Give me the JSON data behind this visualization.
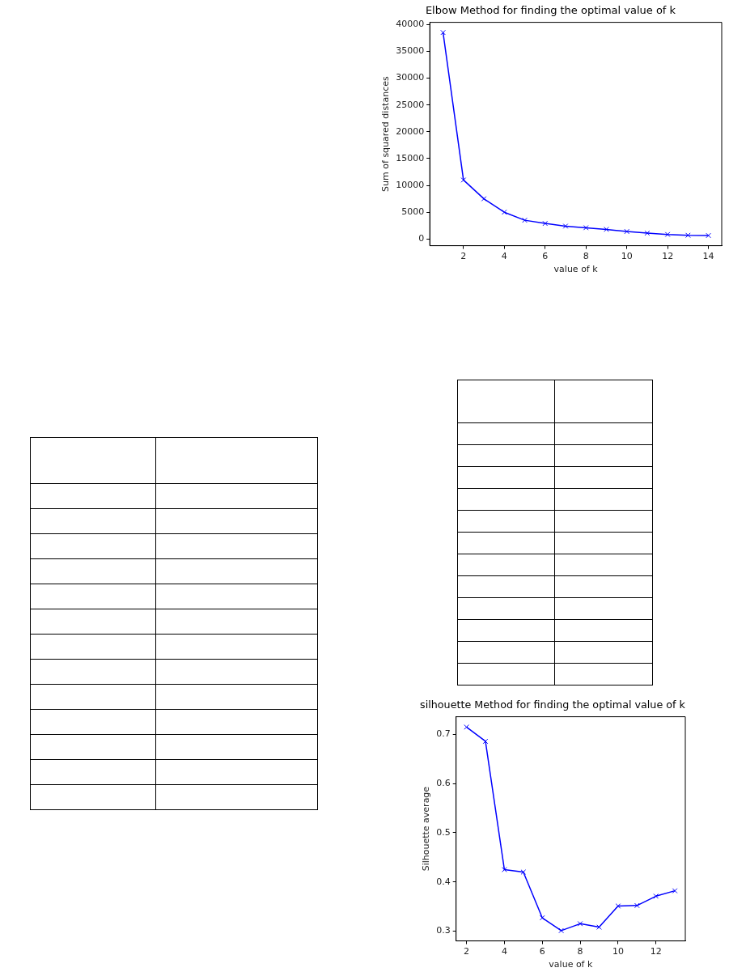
{
  "chart_data": [
    {
      "type": "line",
      "title": "Elbow Method for finding the optimal value of k",
      "xlabel": "value of k",
      "ylabel": "Sum of squared distances",
      "x": [
        1,
        2,
        3,
        4,
        5,
        6,
        7,
        8,
        9,
        10,
        11,
        12,
        13,
        14
      ],
      "series": [
        {
          "color": "#0000ff",
          "values": [
            38500,
            11000,
            7500,
            5000,
            3500,
            2900,
            2400,
            2100,
            1800,
            1400,
            1100,
            850,
            700,
            650
          ]
        }
      ],
      "xlim": [
        0.35,
        14.65
      ],
      "xticks": [
        2,
        4,
        6,
        8,
        10,
        12,
        14
      ],
      "ylim": [
        -1250,
        40400
      ],
      "yticks": [
        0,
        5000,
        10000,
        15000,
        20000,
        25000,
        30000,
        35000,
        40000
      ],
      "grid": false,
      "legend": false,
      "marker": "cross",
      "line_style": "solid"
    },
    {
      "type": "line",
      "title": "silhouette Method for finding the optimal value of k",
      "xlabel": "value of k",
      "ylabel": "Silhouette average",
      "x": [
        2,
        3,
        4,
        5,
        6,
        7,
        8,
        9,
        10,
        11,
        12,
        13
      ],
      "series": [
        {
          "color": "#0000ff",
          "values": [
            0.715,
            0.686,
            0.425,
            0.42,
            0.327,
            0.301,
            0.315,
            0.308,
            0.351,
            0.352,
            0.371,
            0.382
          ]
        }
      ],
      "xlim": [
        1.45,
        13.55
      ],
      "xticks": [
        2,
        4,
        6,
        8,
        10,
        12
      ],
      "ylim": [
        0.28,
        0.736
      ],
      "yticks": [
        0.3,
        0.4,
        0.5,
        0.6,
        0.7
      ],
      "grid": false,
      "legend": false,
      "marker": "cross",
      "line_style": "solid"
    }
  ]
}
